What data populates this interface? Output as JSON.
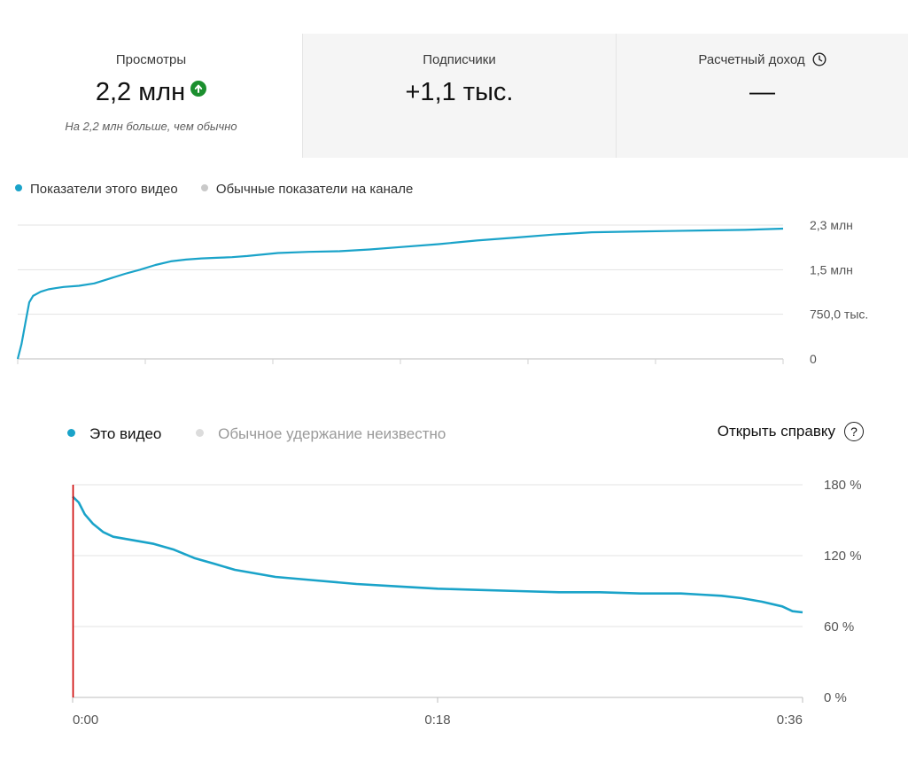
{
  "summary": {
    "views": {
      "label": "Просмотры",
      "value": "2,2 млн",
      "note": "На 2,2 млн больше, чем обычно",
      "icon": "arrow-up-icon"
    },
    "subscribers": {
      "label": "Подписчики",
      "value": "+1,1 тыс."
    },
    "revenue": {
      "label": "Расчетный доход",
      "value": "—",
      "icon": "clock-icon"
    }
  },
  "help": {
    "label": "Открыть справку",
    "icon": "help-icon"
  },
  "colors": {
    "series": "#1aa3c9",
    "muted": "#c9c9c9",
    "grid": "#e3e3e3",
    "marker": "#cc0000",
    "up": "#1b8f2e"
  },
  "chart_data": [
    {
      "type": "line",
      "title": "",
      "legend": [
        "Показатели этого видео",
        "Обычные показатели на канале"
      ],
      "legend_position": "top-left",
      "y_ticks": [
        "2,3 млн",
        "1,5 млн",
        "750,0 тыс.",
        "0"
      ],
      "ylim": [
        0,
        2250000
      ],
      "grid": true,
      "series": [
        {
          "name": "Показатели этого видео",
          "x": [
            0,
            0.5,
            1,
            1.5,
            2,
            3,
            4,
            5,
            6,
            8,
            10,
            12,
            14,
            16,
            18,
            20,
            22,
            24,
            26,
            28,
            30,
            34,
            38,
            42,
            46,
            50,
            55,
            60,
            65,
            70,
            75,
            80,
            85,
            90,
            95,
            100
          ],
          "y": [
            0,
            250000,
            600000,
            950000,
            1060000,
            1130000,
            1170000,
            1190000,
            1210000,
            1230000,
            1270000,
            1350000,
            1430000,
            1500000,
            1580000,
            1640000,
            1670000,
            1690000,
            1700000,
            1710000,
            1730000,
            1780000,
            1800000,
            1810000,
            1840000,
            1880000,
            1930000,
            1990000,
            2040000,
            2090000,
            2130000,
            2140000,
            2150000,
            2160000,
            2170000,
            2190000
          ]
        }
      ]
    },
    {
      "type": "line",
      "title": "",
      "legend": [
        "Это видео",
        "Обычное удержание неизвестно"
      ],
      "legend_position": "top-left",
      "x_ticks": [
        "0:00",
        "0:18",
        "0:36"
      ],
      "y_ticks": [
        "180 %",
        "120 %",
        "60 %",
        "0 %"
      ],
      "xlim": [
        0,
        36
      ],
      "ylim": [
        0,
        180
      ],
      "grid": true,
      "series": [
        {
          "name": "Это видео",
          "x": [
            0,
            0.3,
            0.6,
            1,
            1.5,
            2,
            3,
            4,
            5,
            6,
            7,
            8,
            10,
            12,
            14,
            16,
            18,
            20,
            22,
            24,
            26,
            28,
            30,
            31,
            32,
            33,
            34,
            35,
            35.5,
            36
          ],
          "y": [
            170,
            165,
            155,
            147,
            140,
            136,
            133,
            130,
            125,
            118,
            113,
            108,
            102,
            99,
            96,
            94,
            92,
            91,
            90,
            89,
            89,
            88,
            88,
            87,
            86,
            84,
            81,
            77,
            73,
            72
          ]
        }
      ]
    }
  ]
}
